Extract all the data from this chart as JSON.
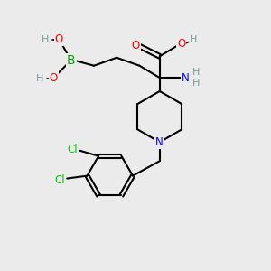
{
  "bg_color": "#ebebeb",
  "atom_colors": {
    "C": "#000000",
    "H": "#7a9a9a",
    "O": "#ff0000",
    "N": "#0000ff",
    "B": "#00aa00",
    "Cl": "#00cc00"
  },
  "bond_color": "#000000",
  "bond_width": 1.5,
  "figsize": [
    3.0,
    3.0
  ],
  "dpi": 100
}
